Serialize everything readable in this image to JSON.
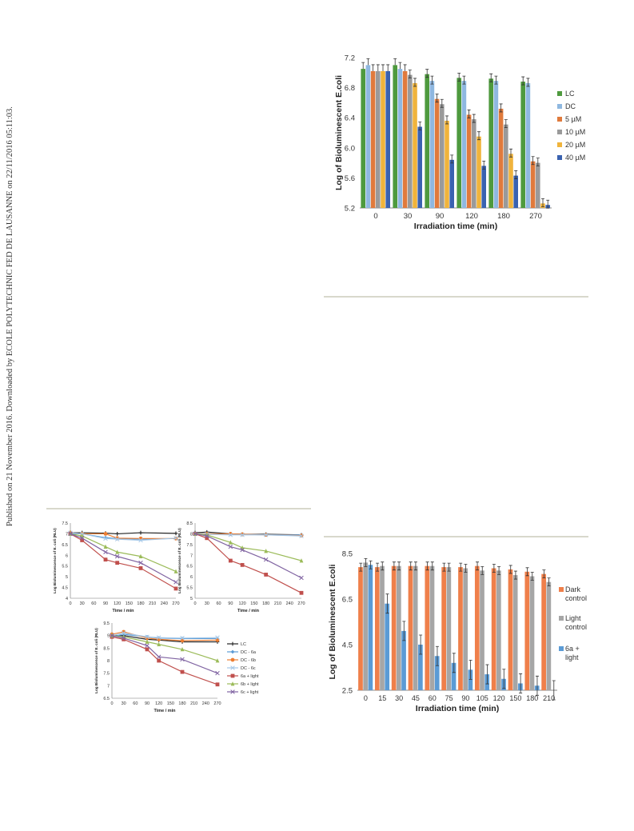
{
  "margin_note": "Published on 21 November 2016. Downloaded by ECOLE POLYTECHNIC FED DE LAUSANNE on 22/11/2016 05:11:03.",
  "colors": {
    "LC": "#4e9a3e",
    "DC": "#8fb8e0",
    "c5": "#e07a3c",
    "c10": "#9a9a9a",
    "c20": "#f0b43c",
    "c40": "#3a62b0",
    "dark": "#ef7f4a",
    "light": "#a6a6a6",
    "lit6a": "#5b9bd5",
    "lLC": "#222222",
    "lDC6a": "#5b9bd5",
    "lDC6b": "#ed7d31",
    "lDC6c": "#a5c8e8",
    "l6a": "#c0504d",
    "l6b": "#9bbb59",
    "l6c": "#8064a2"
  },
  "figures": {
    "bar_top": {
      "chart_data": {
        "type": "bar",
        "categories": [
          "0",
          "30",
          "90",
          "120",
          "180",
          "270"
        ],
        "ylabel": "Log  of Bioluminescent E.coli",
        "xlabel": "Irradiation time (min)",
        "ylim": [
          5.2,
          7.2
        ],
        "yticks": [
          "5.2",
          "5.6",
          "6.0",
          "6.4",
          "6.8",
          "7.2"
        ],
        "legend_position": "right",
        "series": [
          {
            "name": "LC",
            "values": [
              7.05,
              7.1,
              6.98,
              6.93,
              6.92,
              6.88
            ]
          },
          {
            "name": "DC",
            "values": [
              7.1,
              7.05,
              6.89,
              6.89,
              6.89,
              6.86
            ]
          },
          {
            "name": "5 µM",
            "values": [
              7.02,
              7.02,
              6.65,
              6.44,
              6.52,
              5.82
            ]
          },
          {
            "name": "10 µM",
            "values": [
              7.02,
              6.97,
              6.58,
              6.38,
              6.31,
              5.8
            ]
          },
          {
            "name": "20 µM",
            "values": [
              7.02,
              6.86,
              6.36,
              6.15,
              5.92,
              5.26
            ]
          },
          {
            "name": "40 µM",
            "values": [
              7.02,
              6.28,
              5.84,
              5.76,
              5.63,
              5.24
            ]
          }
        ]
      }
    },
    "bar_bottom": {
      "chart_data": {
        "type": "bar",
        "categories": [
          "0",
          "15",
          "30",
          "45",
          "60",
          "75",
          "90",
          "105",
          "120",
          "150",
          "180",
          "210"
        ],
        "ylabel": "Log of Bioluminescent E.coli",
        "xlabel": "Irradiation time (min)",
        "ylim": [
          2.5,
          8.5
        ],
        "yticks": [
          "2.5",
          "4.5",
          "6.5",
          "8.5"
        ],
        "legend_position": "right",
        "series": [
          {
            "name": "Dark control",
            "values": [
              7.9,
              7.9,
              7.95,
              7.95,
              7.95,
              7.9,
              7.9,
              7.95,
              7.85,
              7.8,
              7.7,
              7.6
            ]
          },
          {
            "name": "Light control",
            "values": [
              8.1,
              7.95,
              7.95,
              7.95,
              7.95,
              7.9,
              7.85,
              7.75,
              7.75,
              7.55,
              7.5,
              7.25
            ]
          },
          {
            "name": "6a + light",
            "values": [
              8.0,
              6.3,
              5.1,
              4.5,
              4.0,
              3.7,
              3.4,
              3.2,
              3.0,
              2.8,
              2.7,
              2.5
            ]
          }
        ]
      }
    },
    "line_panels": [
      {
        "chart_data": {
          "type": "line",
          "x": [
            0,
            30,
            60,
            90,
            120,
            150,
            180,
            210,
            240,
            270
          ],
          "xticks": [
            "0",
            "30",
            "60",
            "90",
            "120",
            "150",
            "180",
            "210",
            "240",
            "270"
          ],
          "xlabel": "Time / min",
          "ylabel": "Log Bioluminescence of E. coli (RLU)",
          "ylim": [
            4,
            7.5
          ],
          "yticks": [
            "4",
            "4.5",
            "5",
            "5.5",
            "6",
            "6.5",
            "7",
            "7.5"
          ],
          "series": [
            {
              "name": "LC",
              "x": [
                0,
                30,
                90,
                120,
                180,
                270
              ],
              "y": [
                7.05,
                7.05,
                7.03,
                7.0,
                7.05,
                7.02
              ]
            },
            {
              "name": "DC - 6a",
              "x": [
                0,
                30,
                90,
                120,
                180,
                270
              ],
              "y": [
                7.0,
                7.0,
                6.82,
                6.78,
                6.75,
                6.78
              ]
            },
            {
              "name": "DC - 6b",
              "x": [
                0,
                30,
                90,
                120,
                180,
                270
              ],
              "y": [
                7.05,
                7.0,
                7.0,
                6.8,
                6.78,
                6.78
              ]
            },
            {
              "name": "DC - 6c",
              "x": [
                0,
                30,
                90,
                120,
                180,
                270
              ],
              "y": [
                7.05,
                7.0,
                6.78,
                6.75,
                6.7,
                6.8
              ]
            },
            {
              "name": "6a + light",
              "x": [
                0,
                30,
                90,
                120,
                180,
                270
              ],
              "y": [
                7.0,
                6.7,
                5.8,
                5.65,
                5.4,
                4.45
              ]
            },
            {
              "name": "6b + light",
              "x": [
                0,
                30,
                90,
                120,
                180,
                270
              ],
              "y": [
                7.0,
                6.9,
                6.4,
                6.15,
                5.95,
                5.25
              ]
            },
            {
              "name": "6c + light",
              "x": [
                0,
                30,
                90,
                120,
                180,
                270
              ],
              "y": [
                7.0,
                6.8,
                6.15,
                5.95,
                5.65,
                4.75
              ]
            }
          ]
        }
      },
      {
        "chart_data": {
          "type": "line",
          "x": [
            0,
            30,
            60,
            90,
            120,
            150,
            180,
            210,
            240,
            270
          ],
          "xticks": [
            "0",
            "30",
            "60",
            "90",
            "120",
            "150",
            "180",
            "210",
            "240",
            "270"
          ],
          "xlabel": "Time / min",
          "ylabel": "Log Bioluminescence of E. coli (RLU)",
          "ylim": [
            5,
            8.5
          ],
          "yticks": [
            "5",
            "5.5",
            "6",
            "6.5",
            "7",
            "7.5",
            "8",
            "8.5"
          ],
          "series": [
            {
              "name": "LC",
              "x": [
                0,
                30,
                90,
                120,
                180,
                270
              ],
              "y": [
                8.05,
                8.08,
                8.0,
                7.98,
                7.98,
                7.95
              ]
            },
            {
              "name": "DC - 6a",
              "x": [
                0,
                30,
                90,
                120,
                180,
                270
              ],
              "y": [
                8.0,
                8.0,
                7.98,
                7.98,
                7.95,
                7.95
              ]
            },
            {
              "name": "DC - 6b",
              "x": [
                0,
                30,
                90,
                120,
                180,
                270
              ],
              "y": [
                8.0,
                8.0,
                8.0,
                7.98,
                7.95,
                7.92
              ]
            },
            {
              "name": "DC - 6c",
              "x": [
                0,
                30,
                90,
                120,
                180,
                270
              ],
              "y": [
                8.0,
                7.98,
                7.95,
                7.95,
                7.95,
                7.9
              ]
            },
            {
              "name": "6a + light",
              "x": [
                0,
                30,
                90,
                120,
                180,
                270
              ],
              "y": [
                8.0,
                7.8,
                6.75,
                6.55,
                6.1,
                5.25
              ]
            },
            {
              "name": "6b + light",
              "x": [
                0,
                30,
                90,
                120,
                180,
                270
              ],
              "y": [
                8.0,
                7.95,
                7.6,
                7.35,
                7.2,
                6.75
              ]
            },
            {
              "name": "6c + light",
              "x": [
                0,
                30,
                90,
                120,
                180,
                270
              ],
              "y": [
                8.0,
                7.9,
                7.4,
                7.25,
                6.8,
                5.95
              ]
            }
          ]
        }
      },
      {
        "chart_data": {
          "type": "line",
          "x": [
            0,
            30,
            60,
            90,
            120,
            150,
            180,
            210,
            240,
            270
          ],
          "xticks": [
            "0",
            "30",
            "60",
            "90",
            "120",
            "150",
            "180",
            "210",
            "240",
            "270"
          ],
          "xlabel": "Time / min",
          "ylabel": "Log Bioluminescence of E. coli (RLU)",
          "ylim": [
            6.5,
            9.5
          ],
          "yticks": [
            "6.5",
            "7",
            "7.5",
            "8",
            "8.5",
            "9",
            "9.5"
          ],
          "legend_position": "right",
          "series": [
            {
              "name": "LC",
              "x": [
                0,
                30,
                90,
                120,
                180,
                270
              ],
              "y": [
                9.0,
                9.0,
                8.85,
                8.82,
                8.75,
                8.75
              ]
            },
            {
              "name": "DC - 6a",
              "x": [
                0,
                30,
                90,
                120,
                180,
                270
              ],
              "y": [
                8.95,
                9.05,
                8.95,
                8.9,
                8.88,
                8.88
              ]
            },
            {
              "name": "DC - 6b",
              "x": [
                0,
                30,
                90,
                120,
                180,
                270
              ],
              "y": [
                9.05,
                9.15,
                8.9,
                8.85,
                8.8,
                8.82
              ]
            },
            {
              "name": "DC - 6c",
              "x": [
                0,
                30,
                90,
                120,
                180,
                270
              ],
              "y": [
                9.0,
                9.1,
                8.95,
                8.92,
                8.9,
                8.92
              ]
            },
            {
              "name": "6a + light",
              "x": [
                0,
                30,
                90,
                120,
                180,
                270
              ],
              "y": [
                8.95,
                8.85,
                8.45,
                8.0,
                7.55,
                7.05
              ]
            },
            {
              "name": "6b + light",
              "x": [
                0,
                30,
                90,
                120,
                180,
                270
              ],
              "y": [
                9.0,
                8.95,
                8.75,
                8.65,
                8.45,
                8.0
              ]
            },
            {
              "name": "6c + light",
              "x": [
                0,
                30,
                90,
                120,
                180,
                270
              ],
              "y": [
                9.0,
                8.9,
                8.6,
                8.15,
                8.05,
                7.5
              ]
            }
          ]
        }
      }
    ]
  }
}
